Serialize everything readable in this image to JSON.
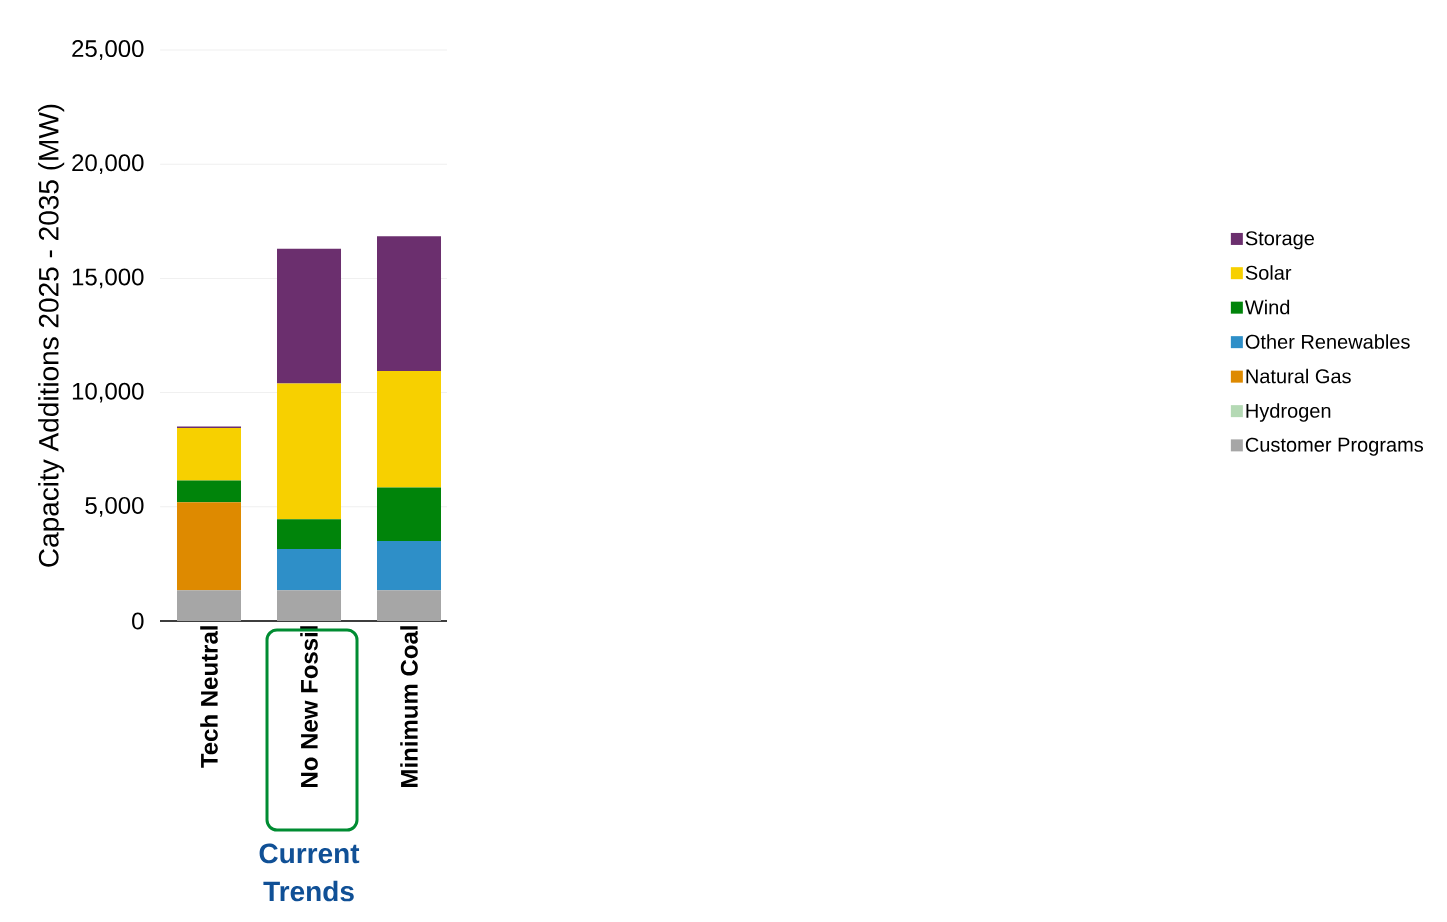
{
  "chart_data": {
    "type": "bar",
    "stacked": true,
    "ylabel": "Capacity Additions 2025 - 2035 (MW)",
    "categories": [
      "Tech Neutral",
      "No New Fossil",
      "Minimum Coal"
    ],
    "series": [
      {
        "name": "Customer Programs",
        "color": "#a6a6a6",
        "values": [
          1350,
          1350,
          1350
        ]
      },
      {
        "name": "Hydrogen",
        "color": "#b4d9b4",
        "values": [
          0,
          0,
          0
        ]
      },
      {
        "name": "Natural Gas",
        "color": "#de8a00",
        "values": [
          3850,
          0,
          0
        ]
      },
      {
        "name": "Other Renewables",
        "color": "#2e8fc8",
        "values": [
          0,
          1800,
          2150
        ]
      },
      {
        "name": "Wind",
        "color": "#00840a",
        "values": [
          950,
          1300,
          2350
        ]
      },
      {
        "name": "Solar",
        "color": "#f7d000",
        "values": [
          2300,
          5950,
          5100
        ]
      },
      {
        "name": "Storage",
        "color": "#6b2f6e",
        "values": [
          70,
          5900,
          5900
        ]
      }
    ],
    "ylim": [
      0,
      25000
    ],
    "yticks": [
      0,
      {
        "value": 5000,
        "label": "5,000"
      },
      {
        "value": 10000,
        "label": "10,000"
      },
      {
        "value": 15000,
        "label": "15,000"
      },
      {
        "value": 20000,
        "label": "20,000"
      },
      {
        "value": 25000,
        "label": "25,000"
      }
    ],
    "grid": "y",
    "legend": "right",
    "annotations": [
      "Current Trends"
    ]
  }
}
